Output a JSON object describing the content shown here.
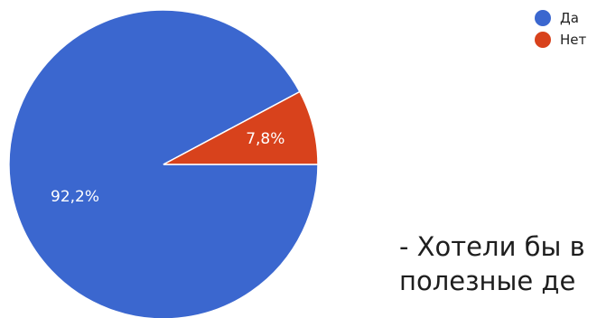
{
  "chart_data": {
    "type": "pie",
    "categories": [
      "Да",
      "Нет"
    ],
    "values": [
      92.2,
      7.8
    ],
    "value_labels": [
      "92,2%",
      "7,8%"
    ],
    "colors": [
      "#3b67cf",
      "#d8421c"
    ],
    "legend_position": "top-right"
  },
  "legend": {
    "items": [
      {
        "label": "Да",
        "color": "#3b67cf"
      },
      {
        "label": "Нет",
        "color": "#d8421c"
      }
    ]
  },
  "caption": {
    "line1": "- Хотели бы в",
    "line2": "полезные де"
  }
}
